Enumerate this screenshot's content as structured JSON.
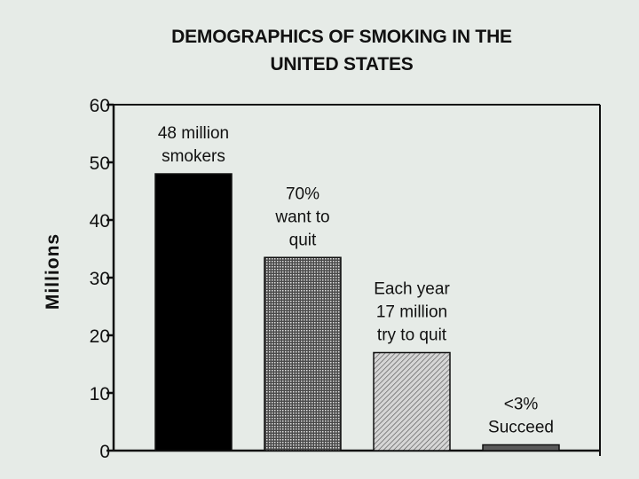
{
  "chart_data": {
    "type": "bar",
    "title_lines": [
      "DEMOGRAPHICS OF SMOKING IN THE",
      "UNITED STATES"
    ],
    "ylabel": "Millions",
    "ylim": [
      0,
      60
    ],
    "yticks": [
      0,
      10,
      20,
      30,
      40,
      50,
      60
    ],
    "grid": false,
    "categories": [
      "48 million smokers",
      "70% want to quit",
      "Each year 17 million try to quit",
      "<3% Succeed"
    ],
    "values": [
      48,
      33.5,
      17,
      1
    ],
    "bar_labels": [
      [
        "48 million",
        "smokers"
      ],
      [
        "70%",
        "want to",
        "quit"
      ],
      [
        "Each year",
        "17 million",
        "try to quit"
      ],
      [
        "<3%",
        "Succeed"
      ]
    ],
    "bar_fills": [
      "solid-black",
      "dense-dot-pattern",
      "diagonal-hatch-pattern",
      "dark-gray"
    ],
    "colors": {
      "background": "#e6ebe7",
      "ink": "#111111"
    }
  }
}
